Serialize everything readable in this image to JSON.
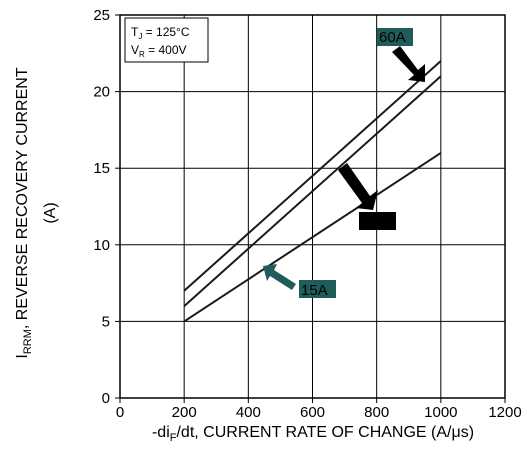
{
  "chart_data": {
    "type": "line",
    "xlabel": {
      "prefix": "-di",
      "sub": "F",
      "suffix": "/dt, CURRENT RATE OF CHANGE (A/μs)"
    },
    "ylabel": {
      "prefix": "I",
      "sub": "RRM",
      "suffix": ", REVERSE RECOVERY CURRENT",
      "line2": "(A)"
    },
    "xlim": [
      0,
      1200
    ],
    "ylim": [
      0,
      25
    ],
    "xticks": [
      0,
      200,
      400,
      600,
      800,
      1000,
      1200
    ],
    "yticks": [
      0,
      5,
      10,
      15,
      20,
      25
    ],
    "grid": true,
    "legend_box": {
      "line1": {
        "prefix": "T",
        "sub": "J",
        "suffix": " = 125°C"
      },
      "line2": {
        "prefix": "V",
        "sub": "R",
        "suffix": " = 400V"
      }
    },
    "series": [
      {
        "name": "60A",
        "x": [
          200,
          1000
        ],
        "y": [
          7,
          22
        ]
      },
      {
        "x": [
          200,
          1000
        ],
        "y": [
          6,
          21
        ]
      },
      {
        "name": "15A",
        "x": [
          200,
          1000
        ],
        "y": [
          5,
          16
        ]
      }
    ],
    "label_colors": {
      "fill": "#1f5c5a",
      "text": "#000000"
    },
    "line_color": "#1a1a1a"
  }
}
